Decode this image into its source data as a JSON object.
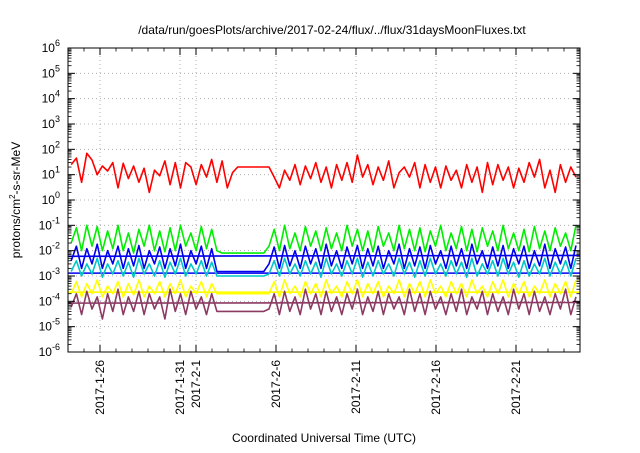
{
  "chart_data": {
    "type": "line",
    "title": "/data/run/goesPlots/archive/2017-02-24/flux/../flux/31daysMoonFluxes.txt",
    "xlabel": "Coordinated Universal Time (UTC)",
    "ylabel": "protons/cm²-s-sr-MeV",
    "ylabel_parts": {
      "pre": "protons/cm",
      "sup": "2",
      "post": "-s-sr-MeV"
    },
    "y_scale": "log",
    "ylim": [
      1e-06,
      1000000.0
    ],
    "y_ticks": [
      {
        "base": "10",
        "exp": "-6"
      },
      {
        "base": "10",
        "exp": "-5"
      },
      {
        "base": "10",
        "exp": "-4"
      },
      {
        "base": "10",
        "exp": "-3"
      },
      {
        "base": "10",
        "exp": "-2"
      },
      {
        "base": "10",
        "exp": "-1"
      },
      {
        "base": "10",
        "exp": "0"
      },
      {
        "base": "10",
        "exp": "1"
      },
      {
        "base": "10",
        "exp": "2"
      },
      {
        "base": "10",
        "exp": "3"
      },
      {
        "base": "10",
        "exp": "4"
      },
      {
        "base": "10",
        "exp": "5"
      },
      {
        "base": "10",
        "exp": "6"
      }
    ],
    "xlim": [
      "2017-01-24",
      "2017-02-25"
    ],
    "x_ticks": [
      {
        "date": "2017-01-26",
        "label": "2017-1-26"
      },
      {
        "date": "2017-01-31",
        "label": "2017-1-31"
      },
      {
        "date": "2017-02-01",
        "label": "2017-2-1"
      },
      {
        "date": "2017-02-06",
        "label": "2017-2-6"
      },
      {
        "date": "2017-02-11",
        "label": "2017-2-11"
      },
      {
        "date": "2017-02-16",
        "label": "2017-2-16"
      },
      {
        "date": "2017-02-21",
        "label": "2017-2-21"
      }
    ],
    "grid": true,
    "series": [
      {
        "color": "#ff0000",
        "values": [
          25,
          45,
          5,
          70,
          38,
          10,
          22,
          14,
          30,
          3,
          28,
          7,
          22,
          5,
          18,
          2,
          15,
          9,
          35,
          4,
          30,
          3,
          30,
          20,
          4,
          25,
          8,
          40,
          5,
          35,
          3,
          12,
          20,
          20,
          20,
          20,
          20,
          20,
          20,
          8,
          3,
          15,
          6,
          25,
          4,
          22,
          7,
          30,
          5,
          20,
          3,
          25,
          6,
          30,
          5,
          60,
          8,
          25,
          4,
          20,
          6,
          35,
          3,
          12,
          20,
          8,
          30,
          3,
          25,
          5,
          20,
          3,
          22,
          6,
          15,
          3,
          25,
          5,
          20,
          2,
          30,
          4,
          25,
          6,
          20,
          3,
          18,
          5,
          30,
          8,
          40,
          3,
          15,
          2,
          25,
          5,
          20,
          8
        ]
      },
      {
        "color": "#00ee00",
        "values": [
          0.02,
          0.08,
          0.01,
          0.1,
          0.015,
          0.09,
          0.01,
          0.06,
          0.012,
          0.1,
          0.01,
          0.05,
          0.008,
          0.07,
          0.015,
          0.1,
          0.01,
          0.06,
          0.009,
          0.08,
          0.01,
          0.1,
          0.015,
          0.05,
          0.01,
          0.09,
          0.012,
          0.07,
          0.01,
          0.008,
          0.008,
          0.008,
          0.008,
          0.008,
          0.008,
          0.008,
          0.008,
          0.008,
          0.015,
          0.07,
          0.01,
          0.1,
          0.012,
          0.05,
          0.01,
          0.09,
          0.015,
          0.06,
          0.01,
          0.08,
          0.012,
          0.05,
          0.01,
          0.1,
          0.015,
          0.07,
          0.01,
          0.06,
          0.009,
          0.09,
          0.015,
          0.05,
          0.01,
          0.1,
          0.012,
          0.07,
          0.01,
          0.08,
          0.009,
          0.06,
          0.015,
          0.1,
          0.01,
          0.05,
          0.012,
          0.09,
          0.01,
          0.07,
          0.009,
          0.08,
          0.015,
          0.06,
          0.01,
          0.1,
          0.012,
          0.05,
          0.01,
          0.07,
          0.009,
          0.09,
          0.012,
          0.06,
          0.01,
          0.08,
          0.015,
          0.05,
          0.01,
          0.1
        ]
      },
      {
        "color": "#0000ee",
        "values": [
          0.004,
          0.015,
          0.002,
          0.012,
          0.003,
          0.018,
          0.002,
          0.01,
          0.003,
          0.015,
          0.002,
          0.012,
          0.0025,
          0.016,
          0.002,
          0.01,
          0.003,
          0.014,
          0.002,
          0.012,
          0.0025,
          0.018,
          0.002,
          0.01,
          0.003,
          0.015,
          0.002,
          0.012,
          0.0015,
          0.0015,
          0.0015,
          0.0015,
          0.0015,
          0.0015,
          0.0015,
          0.0015,
          0.0015,
          0.0015,
          0.003,
          0.014,
          0.002,
          0.016,
          0.0025,
          0.01,
          0.002,
          0.015,
          0.003,
          0.012,
          0.002,
          0.018,
          0.0025,
          0.01,
          0.002,
          0.014,
          0.003,
          0.016,
          0.002,
          0.012,
          0.0025,
          0.015,
          0.002,
          0.01,
          0.003,
          0.018,
          0.002,
          0.012,
          0.0025,
          0.014,
          0.002,
          0.016,
          0.003,
          0.01,
          0.002,
          0.015,
          0.0025,
          0.012,
          0.002,
          0.018,
          0.003,
          0.01,
          0.002,
          0.014,
          0.0025,
          0.016,
          0.002,
          0.012,
          0.003,
          0.015,
          0.002,
          0.01,
          0.0025,
          0.018,
          0.002,
          0.012,
          0.003,
          0.014,
          0.002,
          0.016
        ]
      },
      {
        "color": "#00c8c8",
        "values": [
          0.0015,
          0.004,
          0.001,
          0.003,
          0.0012,
          0.005,
          0.0009,
          0.003,
          0.0012,
          0.004,
          0.001,
          0.0035,
          0.0009,
          0.005,
          0.0012,
          0.003,
          0.001,
          0.004,
          0.0009,
          0.0035,
          0.0012,
          0.005,
          0.001,
          0.003,
          0.0012,
          0.004,
          0.001,
          0.0035,
          0.001,
          0.001,
          0.001,
          0.001,
          0.001,
          0.001,
          0.001,
          0.001,
          0.001,
          0.001,
          0.0012,
          0.004,
          0.001,
          0.005,
          0.0012,
          0.003,
          0.001,
          0.004,
          0.0012,
          0.0035,
          0.0009,
          0.005,
          0.0012,
          0.003,
          0.001,
          0.004,
          0.0012,
          0.005,
          0.0009,
          0.0035,
          0.001,
          0.004,
          0.0012,
          0.003,
          0.001,
          0.005,
          0.0012,
          0.0035,
          0.0009,
          0.004,
          0.001,
          0.005,
          0.0012,
          0.003,
          0.001,
          0.004,
          0.0012,
          0.0035,
          0.0009,
          0.005,
          0.001,
          0.003,
          0.0012,
          0.004,
          0.001,
          0.005,
          0.0012,
          0.0035,
          0.0009,
          0.004,
          0.001,
          0.003,
          0.0012,
          0.005,
          0.001,
          0.0035,
          0.0012,
          0.004,
          0.001,
          0.005
        ]
      },
      {
        "color": "#ffff00",
        "values": [
          0.0002,
          0.0006,
          0.00015,
          0.0005,
          0.0002,
          0.0007,
          0.00015,
          0.0004,
          0.0002,
          0.0006,
          0.00015,
          0.0005,
          0.00018,
          0.0007,
          0.00015,
          0.0004,
          0.0002,
          0.0006,
          0.00015,
          0.0005,
          0.0002,
          0.0007,
          0.00015,
          0.0004,
          0.0002,
          0.0006,
          0.00015,
          0.0005,
          0.0002,
          0.0002,
          0.0002,
          0.0002,
          0.0002,
          0.0002,
          0.0002,
          0.0002,
          0.0002,
          0.0002,
          0.0002,
          0.0006,
          0.00015,
          0.0007,
          0.0002,
          0.0004,
          0.00015,
          0.0006,
          0.0002,
          0.0005,
          0.00015,
          0.0007,
          0.0002,
          0.0004,
          0.00015,
          0.0006,
          0.0002,
          0.0007,
          0.00015,
          0.0005,
          0.0002,
          0.0006,
          0.00015,
          0.0004,
          0.0002,
          0.0007,
          0.00015,
          0.0005,
          0.0002,
          0.0006,
          0.00015,
          0.0007,
          0.0002,
          0.0004,
          0.00015,
          0.0006,
          0.0002,
          0.0005,
          0.00015,
          0.0007,
          0.0002,
          0.0004,
          0.00015,
          0.0006,
          0.0002,
          0.0007,
          0.00015,
          0.0005,
          0.0002,
          0.0006,
          0.00015,
          0.0004,
          0.0002,
          0.0007,
          0.00015,
          0.0005,
          0.0002,
          0.0006,
          0.00015,
          0.0007
        ]
      },
      {
        "color": "#8b3a62",
        "values": [
          6e-05,
          0.0002,
          3e-05,
          0.00025,
          5e-05,
          0.00015,
          2e-05,
          0.0002,
          4e-05,
          0.0003,
          3e-05,
          0.00015,
          4e-05,
          0.00025,
          3e-05,
          0.0002,
          5e-05,
          0.00015,
          2e-05,
          0.0003,
          4e-05,
          0.0002,
          3e-05,
          0.00025,
          5e-05,
          0.00015,
          3e-05,
          0.0002,
          4e-05,
          4e-05,
          4e-05,
          4e-05,
          4e-05,
          4e-05,
          4e-05,
          4e-05,
          4e-05,
          4e-05,
          5e-05,
          0.0002,
          3e-05,
          0.00025,
          4e-05,
          0.00015,
          3e-05,
          0.0003,
          5e-05,
          0.0002,
          3e-05,
          0.00025,
          4e-05,
          0.00015,
          3e-05,
          0.0002,
          5e-05,
          0.0003,
          3e-05,
          0.00015,
          4e-05,
          0.00025,
          3e-05,
          0.0002,
          5e-05,
          0.00015,
          3e-05,
          0.0003,
          4e-05,
          0.0002,
          3e-05,
          0.00025,
          5e-05,
          0.00015,
          3e-05,
          0.0002,
          4e-05,
          0.0003,
          3e-05,
          0.00015,
          5e-05,
          0.00025,
          3e-05,
          0.0002,
          4e-05,
          0.00015,
          3e-05,
          0.0003,
          5e-05,
          0.0002,
          3e-05,
          0.00025,
          4e-05,
          0.00015,
          3e-05,
          0.0002,
          5e-05,
          0.0003,
          3e-05,
          0.00015
        ]
      }
    ],
    "reference_lines": [
      {
        "color": "#0000ee",
        "values": [
          0.006,
          0.0065
        ]
      },
      {
        "color": "#0000ee",
        "values": [
          0.0013,
          0.0013
        ]
      },
      {
        "color": "#ffff00",
        "values": [
          0.00023,
          0.00023
        ]
      },
      {
        "color": "#8b3a62",
        "values": [
          8.5e-05,
          9e-05
        ]
      }
    ]
  }
}
